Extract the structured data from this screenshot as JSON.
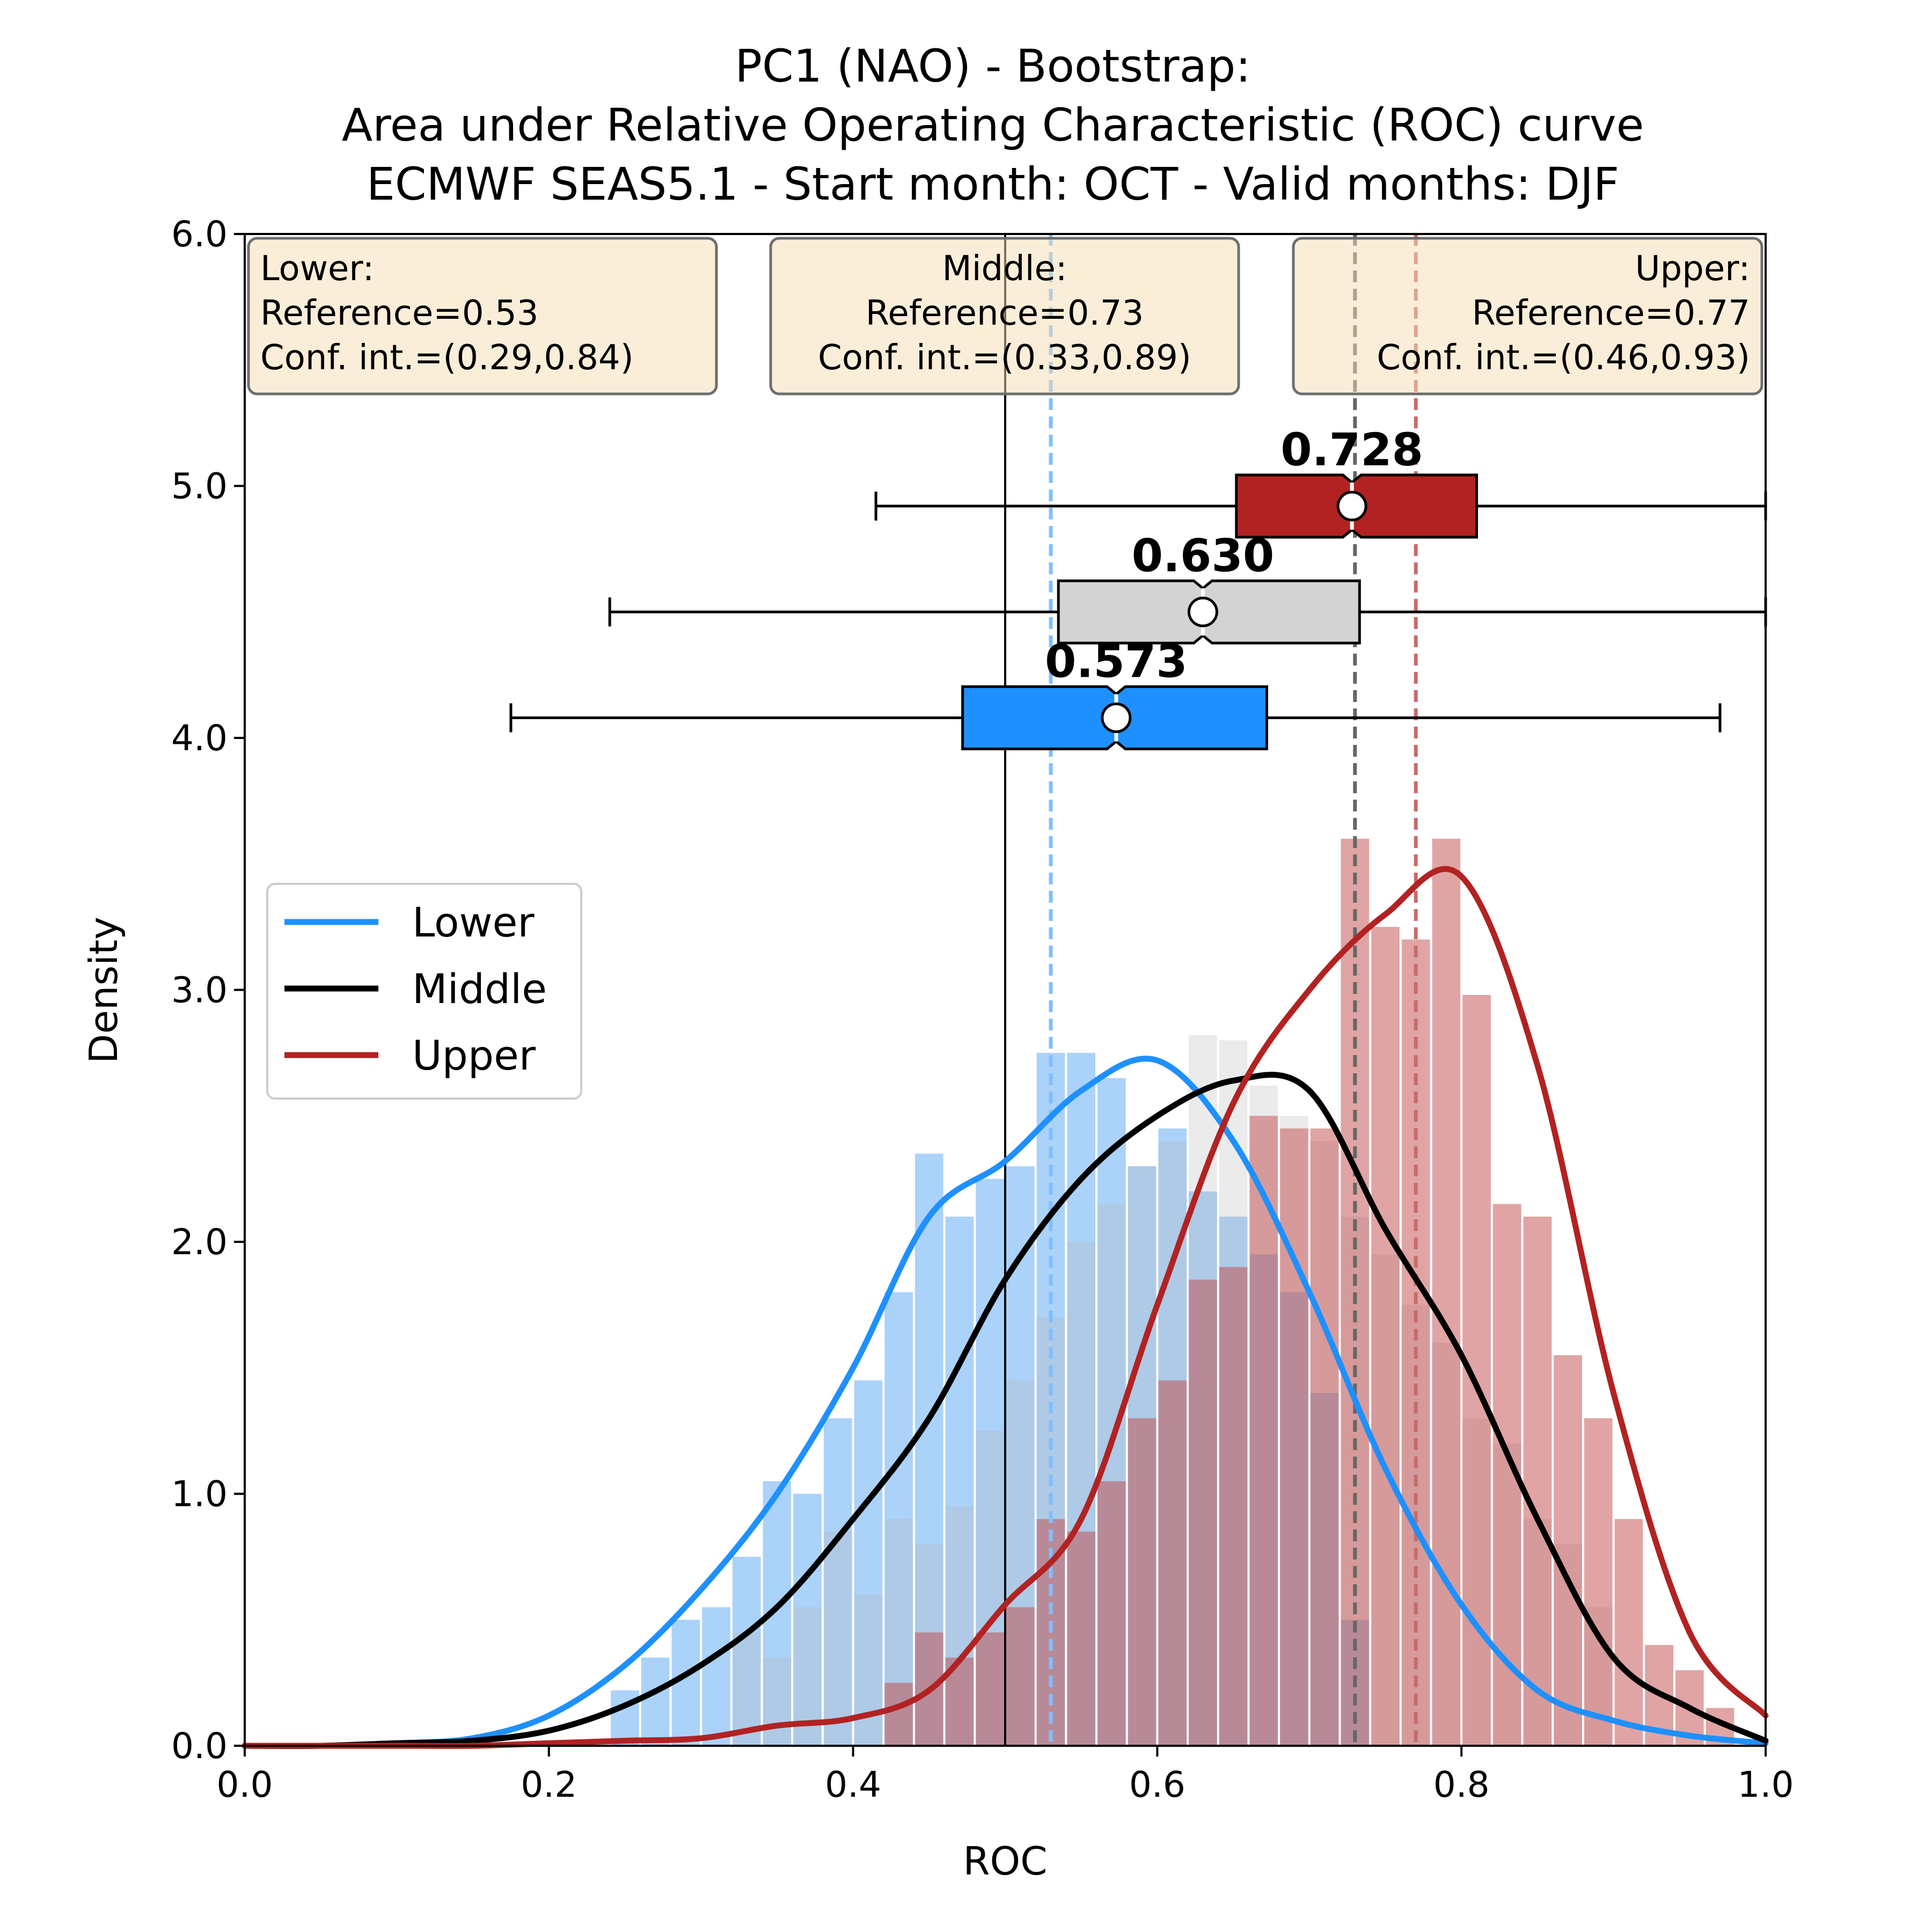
{
  "chart_data": {
    "type": "histogram+kde+boxplot",
    "title": [
      "PC1 (NAO) - Bootstrap:",
      "Area under Relative Operating Characteristic (ROC) curve",
      "ECMWF SEAS5.1 - Start month: OCT - Valid months: DJF"
    ],
    "xlabel": "ROC",
    "ylabel": "Density",
    "xlim": [
      0.0,
      1.0
    ],
    "ylim": [
      0.0,
      6.0
    ],
    "xticks": [
      "0.0",
      "0.2",
      "0.4",
      "0.6",
      "0.8",
      "1.0"
    ],
    "yticks": [
      "0.0",
      "1.0",
      "2.0",
      "3.0",
      "4.0",
      "5.0",
      "6.0"
    ],
    "legend": {
      "location": "center-left",
      "entries": [
        "Lower",
        "Middle",
        "Upper"
      ]
    },
    "colors": {
      "Lower": "#1e90ff",
      "Middle": "#000000",
      "Upper": "#b22222"
    },
    "bin_width": 0.02,
    "histogram": {
      "Lower": {
        "x": [
          0.25,
          0.27,
          0.29,
          0.31,
          0.33,
          0.35,
          0.37,
          0.39,
          0.41,
          0.43,
          0.45,
          0.47,
          0.49,
          0.51,
          0.53,
          0.55,
          0.57,
          0.59,
          0.61,
          0.63,
          0.65,
          0.67,
          0.69,
          0.71,
          0.73
        ],
        "y": [
          0.22,
          0.35,
          0.5,
          0.55,
          0.75,
          1.05,
          1.0,
          1.3,
          1.45,
          1.8,
          2.35,
          2.1,
          2.25,
          2.3,
          2.75,
          2.75,
          2.65,
          2.3,
          2.45,
          2.2,
          2.1,
          1.95,
          1.8,
          1.4,
          0.5
        ]
      },
      "Middle": {
        "x": [
          0.33,
          0.35,
          0.37,
          0.39,
          0.41,
          0.43,
          0.45,
          0.47,
          0.49,
          0.51,
          0.53,
          0.55,
          0.57,
          0.59,
          0.61,
          0.63,
          0.65,
          0.67,
          0.69,
          0.71,
          0.73,
          0.75,
          0.77,
          0.79,
          0.81,
          0.83,
          0.85,
          0.87,
          0.89
        ],
        "y": [
          0.45,
          0.35,
          0.55,
          0.85,
          0.6,
          0.9,
          0.8,
          0.95,
          1.25,
          1.45,
          1.7,
          2.0,
          2.15,
          2.3,
          2.4,
          2.82,
          2.8,
          2.62,
          2.5,
          2.4,
          2.1,
          1.95,
          1.75,
          1.6,
          1.3,
          1.2,
          0.9,
          0.8,
          0.55
        ]
      },
      "Upper": {
        "x": [
          0.43,
          0.45,
          0.47,
          0.49,
          0.51,
          0.53,
          0.55,
          0.57,
          0.59,
          0.61,
          0.63,
          0.65,
          0.67,
          0.69,
          0.71,
          0.73,
          0.75,
          0.77,
          0.79,
          0.81,
          0.83,
          0.85,
          0.87,
          0.89,
          0.91,
          0.93,
          0.95,
          0.97
        ],
        "y": [
          0.25,
          0.45,
          0.35,
          0.45,
          0.55,
          0.9,
          0.85,
          1.05,
          1.3,
          1.45,
          1.85,
          1.9,
          2.5,
          2.45,
          2.45,
          3.6,
          3.25,
          3.2,
          3.6,
          2.98,
          2.15,
          2.1,
          1.55,
          1.3,
          0.9,
          0.4,
          0.3,
          0.15
        ]
      }
    },
    "kde": {
      "x": [
        0.0,
        0.05,
        0.1,
        0.15,
        0.2,
        0.25,
        0.3,
        0.35,
        0.4,
        0.45,
        0.5,
        0.55,
        0.6,
        0.65,
        0.7,
        0.75,
        0.8,
        0.85,
        0.9,
        0.95,
        1.0
      ],
      "Lower": [
        0.0,
        0.0,
        0.01,
        0.03,
        0.12,
        0.32,
        0.62,
        1.0,
        1.5,
        2.1,
        2.32,
        2.6,
        2.72,
        2.4,
        1.8,
        1.1,
        0.56,
        0.22,
        0.1,
        0.04,
        0.01
      ],
      "Middle": [
        0.0,
        0.0,
        0.01,
        0.02,
        0.06,
        0.16,
        0.32,
        0.55,
        0.9,
        1.3,
        1.85,
        2.25,
        2.5,
        2.64,
        2.6,
        2.05,
        1.55,
        0.9,
        0.35,
        0.15,
        0.02
      ],
      "Upper": [
        0.0,
        0.0,
        0.0,
        0.0,
        0.01,
        0.02,
        0.03,
        0.08,
        0.11,
        0.22,
        0.56,
        0.9,
        1.75,
        2.55,
        3.0,
        3.3,
        3.45,
        2.7,
        1.4,
        0.45,
        0.12
      ]
    },
    "reference_lines": [
      {
        "name": "Lower",
        "x": 0.53,
        "style": "dashed",
        "color": "#7fbfff"
      },
      {
        "name": "Middle",
        "x": 0.73,
        "style": "dashed",
        "color": "#666666"
      },
      {
        "name": "Upper",
        "x": 0.77,
        "style": "dashed",
        "color": "#c76b6b"
      },
      {
        "name": "no-skill",
        "x": 0.5,
        "style": "solid",
        "color": "#000000"
      }
    ],
    "boxplots": [
      {
        "name": "Lower",
        "y": 4.08,
        "whisker_low": 0.175,
        "q1": 0.472,
        "median": 0.573,
        "q3": 0.672,
        "whisker_high": 0.97,
        "mean": 0.573,
        "label": "0.573",
        "color": "#1e90ff"
      },
      {
        "name": "Middle",
        "y": 4.5,
        "whisker_low": 0.24,
        "q1": 0.535,
        "median": 0.63,
        "q3": 0.733,
        "whisker_high": 1.0,
        "mean": 0.63,
        "label": "0.630",
        "color": "#d3d3d3"
      },
      {
        "name": "Upper",
        "y": 4.92,
        "whisker_low": 0.415,
        "q1": 0.652,
        "median": 0.728,
        "q3": 0.81,
        "whisker_high": 1.0,
        "mean": 0.728,
        "label": "0.728",
        "color": "#b22222"
      }
    ],
    "info_boxes": [
      {
        "name": "Lower",
        "lines": [
          "Lower:",
          "Reference=0.53",
          "Conf. int.=(0.29,0.84)"
        ],
        "align": "left"
      },
      {
        "name": "Middle",
        "lines": [
          "Middle:",
          "Reference=0.73",
          "Conf. int.=(0.33,0.89)"
        ],
        "align": "center"
      },
      {
        "name": "Upper",
        "lines": [
          "Upper:",
          "Reference=0.77",
          "Conf. int.=(0.46,0.93)"
        ],
        "align": "right"
      }
    ]
  }
}
